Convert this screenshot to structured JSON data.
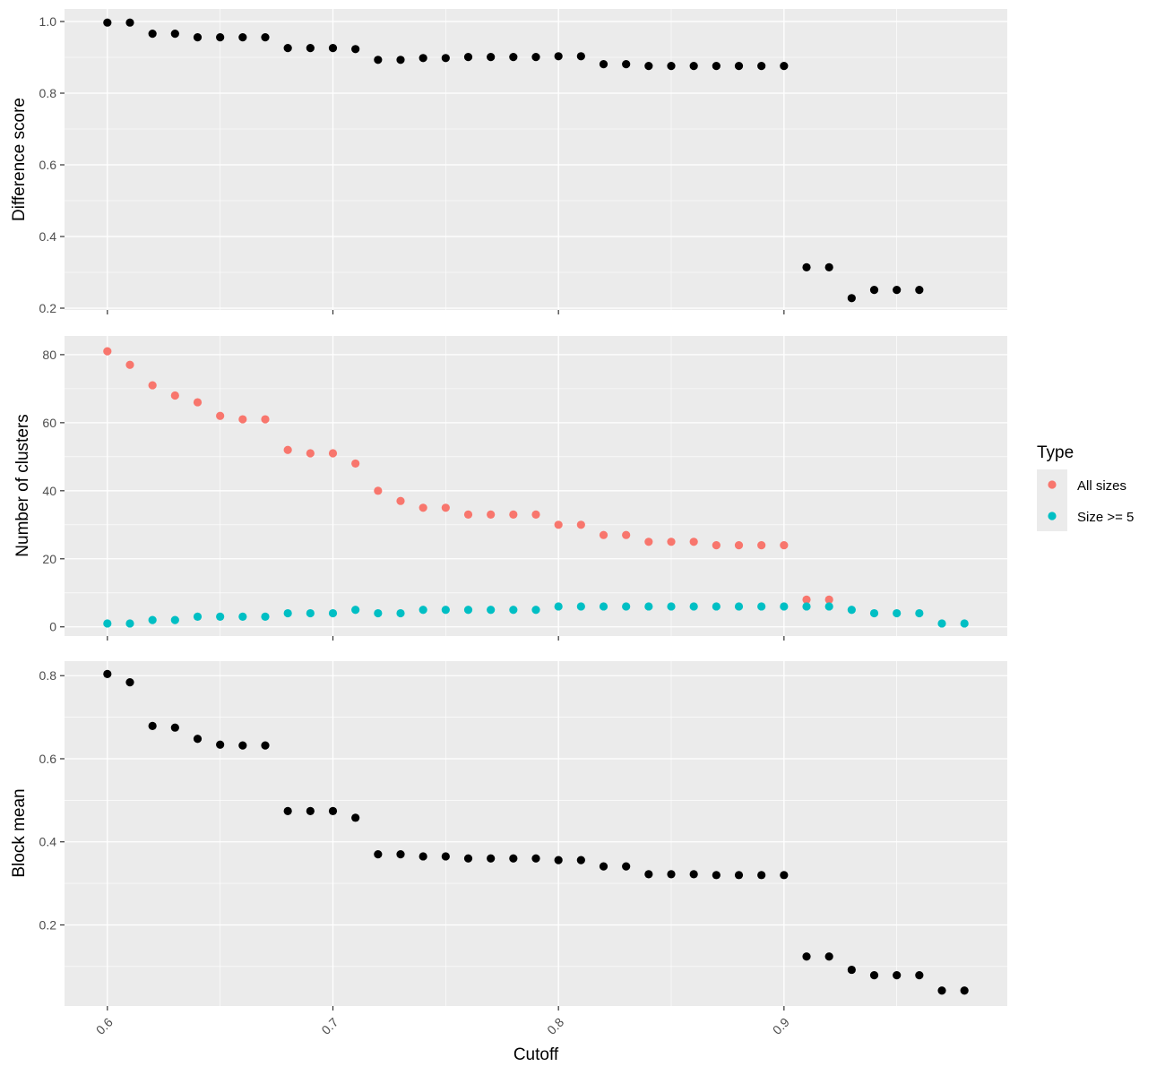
{
  "chart_data": [
    {
      "type": "scatter",
      "panel": "top",
      "ylabel": "Difference score",
      "xlim": [
        0.581,
        0.999
      ],
      "ylim": [
        0.195,
        1.035
      ],
      "yticks": [
        "0.2",
        "0.4",
        "0.6",
        "0.8",
        "1.0"
      ],
      "series": [
        {
          "color": "#000000",
          "x": [
            0.6,
            0.61,
            0.62,
            0.63,
            0.64,
            0.65,
            0.66,
            0.67,
            0.68,
            0.69,
            0.7,
            0.71,
            0.72,
            0.73,
            0.74,
            0.75,
            0.76,
            0.77,
            0.78,
            0.79,
            0.8,
            0.81,
            0.82,
            0.83,
            0.84,
            0.85,
            0.86,
            0.87,
            0.88,
            0.89,
            0.9,
            0.91,
            0.92,
            0.93,
            0.94,
            0.95,
            0.96
          ],
          "y": [
            0.997,
            0.997,
            0.966,
            0.966,
            0.956,
            0.956,
            0.956,
            0.956,
            0.926,
            0.926,
            0.926,
            0.923,
            0.893,
            0.893,
            0.898,
            0.898,
            0.901,
            0.901,
            0.901,
            0.901,
            0.903,
            0.903,
            0.881,
            0.881,
            0.876,
            0.876,
            0.876,
            0.876,
            0.876,
            0.876,
            0.876,
            0.314,
            0.314,
            0.228,
            0.251,
            0.251,
            0.251
          ]
        }
      ]
    },
    {
      "type": "scatter",
      "panel": "middle",
      "ylabel": "Number of clusters",
      "xlim": [
        0.581,
        0.999
      ],
      "ylim": [
        -2.7,
        85.5
      ],
      "yticks": [
        "0",
        "20",
        "40",
        "60",
        "80"
      ],
      "legend": {
        "title": "Type",
        "position": "right"
      },
      "series": [
        {
          "name": "All sizes",
          "color": "#F8766D",
          "x": [
            0.6,
            0.61,
            0.62,
            0.63,
            0.64,
            0.65,
            0.66,
            0.67,
            0.68,
            0.69,
            0.7,
            0.71,
            0.72,
            0.73,
            0.74,
            0.75,
            0.76,
            0.77,
            0.78,
            0.79,
            0.8,
            0.81,
            0.82,
            0.83,
            0.84,
            0.85,
            0.86,
            0.87,
            0.88,
            0.89,
            0.9,
            0.91,
            0.92
          ],
          "y": [
            81,
            77,
            71,
            68,
            66,
            62,
            61,
            61,
            52,
            51,
            51,
            48,
            40,
            37,
            35,
            35,
            33,
            33,
            33,
            33,
            30,
            30,
            27,
            27,
            25,
            25,
            25,
            24,
            24,
            24,
            24,
            8,
            8
          ]
        },
        {
          "name": "Size >= 5",
          "color": "#00BFC4",
          "x": [
            0.6,
            0.61,
            0.62,
            0.63,
            0.64,
            0.65,
            0.66,
            0.67,
            0.68,
            0.69,
            0.7,
            0.71,
            0.72,
            0.73,
            0.74,
            0.75,
            0.76,
            0.77,
            0.78,
            0.79,
            0.8,
            0.81,
            0.82,
            0.83,
            0.84,
            0.85,
            0.86,
            0.87,
            0.88,
            0.89,
            0.9,
            0.91,
            0.92,
            0.93,
            0.94,
            0.95,
            0.96,
            0.97,
            0.98
          ],
          "y": [
            1,
            1,
            2,
            2,
            3,
            3,
            3,
            3,
            4,
            4,
            4,
            5,
            4,
            4,
            5,
            5,
            5,
            5,
            5,
            5,
            6,
            6,
            6,
            6,
            6,
            6,
            6,
            6,
            6,
            6,
            6,
            6,
            6,
            5,
            4,
            4,
            4,
            1,
            1
          ]
        }
      ]
    },
    {
      "type": "scatter",
      "panel": "bottom",
      "xlabel": "Cutoff",
      "ylabel": "Block mean",
      "xlim": [
        0.581,
        0.999
      ],
      "ylim": [
        0.0048,
        0.835
      ],
      "xticks": [
        "0.6",
        "0.7",
        "0.8",
        "0.9"
      ],
      "yticks": [
        "0.2",
        "0.4",
        "0.6",
        "0.8"
      ],
      "series": [
        {
          "color": "#000000",
          "x": [
            0.6,
            0.61,
            0.62,
            0.63,
            0.64,
            0.65,
            0.66,
            0.67,
            0.68,
            0.69,
            0.7,
            0.71,
            0.72,
            0.73,
            0.74,
            0.75,
            0.76,
            0.77,
            0.78,
            0.79,
            0.8,
            0.81,
            0.82,
            0.83,
            0.84,
            0.85,
            0.86,
            0.87,
            0.88,
            0.89,
            0.9,
            0.91,
            0.92,
            0.93,
            0.94,
            0.95,
            0.96,
            0.97,
            0.98
          ],
          "y": [
            0.804,
            0.784,
            0.679,
            0.675,
            0.648,
            0.634,
            0.632,
            0.632,
            0.474,
            0.474,
            0.474,
            0.458,
            0.37,
            0.37,
            0.365,
            0.365,
            0.36,
            0.36,
            0.36,
            0.36,
            0.356,
            0.356,
            0.341,
            0.341,
            0.322,
            0.322,
            0.322,
            0.32,
            0.32,
            0.32,
            0.32,
            0.124,
            0.124,
            0.092,
            0.079,
            0.079,
            0.079,
            0.042,
            0.042
          ]
        }
      ]
    }
  ]
}
